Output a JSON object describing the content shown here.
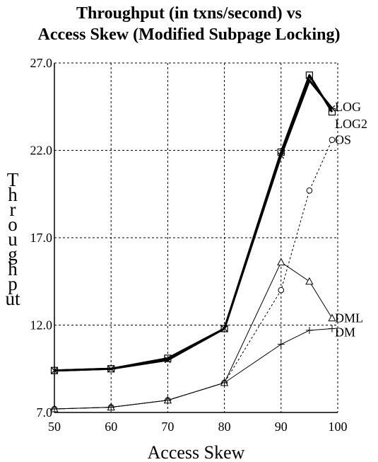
{
  "chart_data": {
    "type": "line",
    "title": "Throughput (in txns/second) vs",
    "subtitle": "Access Skew (Modified Subpage Locking)",
    "xlabel": "Access Skew",
    "ylabel": "Throughput",
    "x": [
      50,
      60,
      70,
      80,
      90,
      95,
      99
    ],
    "xticks": [
      "50",
      "60",
      "70",
      "80",
      "90",
      "100"
    ],
    "xlim": [
      50,
      100
    ],
    "yticks": [
      "7.0",
      "12.0",
      "17.0",
      "22.0",
      "27.0"
    ],
    "ylim": [
      7.0,
      27.0
    ],
    "grid": true,
    "series": [
      {
        "name": "LOG",
        "values": [
          9.4,
          9.5,
          10.0,
          11.8,
          21.7,
          26.0,
          24.4
        ],
        "marker": "x",
        "style": "solid-thick"
      },
      {
        "name": "LOG2",
        "values": [
          9.4,
          9.5,
          10.1,
          11.8,
          21.9,
          26.3,
          24.2
        ],
        "marker": "square",
        "style": "solid-thick"
      },
      {
        "name": "OS",
        "values": [
          7.2,
          7.3,
          7.7,
          8.7,
          14.0,
          19.7,
          22.6
        ],
        "marker": "circle",
        "style": "dashed"
      },
      {
        "name": "DML",
        "values": [
          7.2,
          7.3,
          7.7,
          8.7,
          15.6,
          14.5,
          12.4
        ],
        "marker": "triangle",
        "style": "solid-thin"
      },
      {
        "name": "DM",
        "values": [
          7.2,
          7.3,
          7.7,
          8.7,
          10.9,
          11.7,
          11.8
        ],
        "marker": "plus",
        "style": "solid-thin"
      }
    ]
  }
}
